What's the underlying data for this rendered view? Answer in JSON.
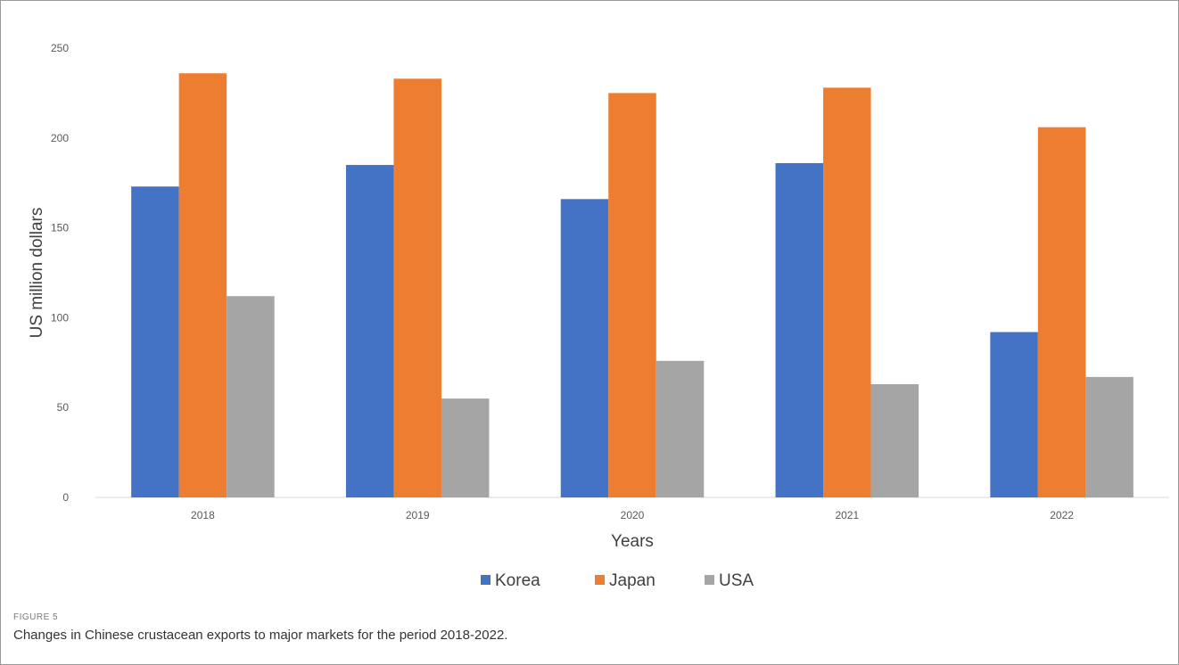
{
  "chart_data": {
    "type": "bar",
    "categories": [
      "2018",
      "2019",
      "2020",
      "2021",
      "2022"
    ],
    "series": [
      {
        "name": "Korea",
        "color": "#4472c4",
        "values": [
          173,
          185,
          166,
          186,
          92
        ]
      },
      {
        "name": "Japan",
        "color": "#ed7d31",
        "values": [
          236,
          233,
          225,
          228,
          206
        ]
      },
      {
        "name": "USA",
        "color": "#a5a5a5",
        "values": [
          112,
          55,
          76,
          63,
          67
        ]
      }
    ],
    "xlabel": "Years",
    "ylabel": "US million dollars",
    "ylim": [
      0,
      250
    ],
    "yticks": [
      0,
      50,
      100,
      150,
      200,
      250
    ],
    "grid": false,
    "legend_position": "bottom"
  },
  "figure": {
    "label": "FIGURE 5",
    "caption": "Changes in Chinese crustacean exports to major markets for the period 2018-2022."
  }
}
